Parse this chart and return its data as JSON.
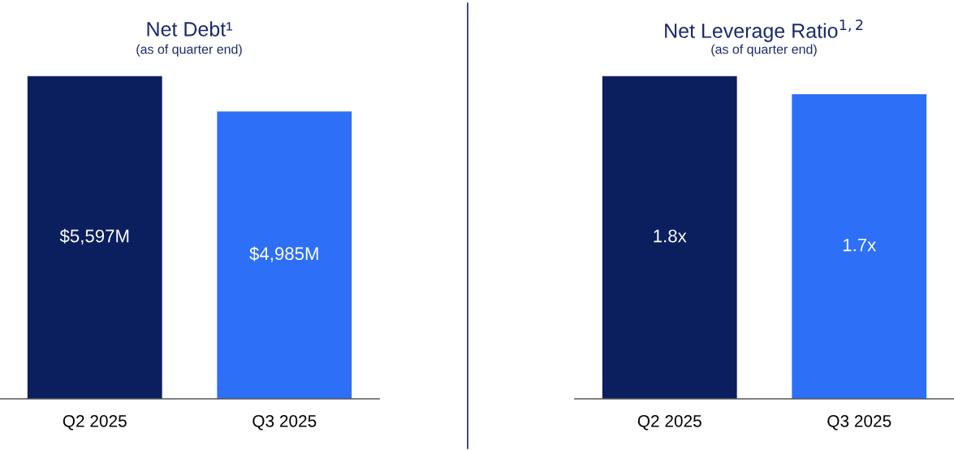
{
  "chart_data": [
    {
      "type": "bar",
      "title": "Net Debt¹",
      "subtitle": "(as of quarter end)",
      "categories": [
        "Q2 2025",
        "Q3 2025"
      ],
      "values": [
        5597,
        4985
      ],
      "colors": [
        "#0b1f5e",
        "#2d6ff7"
      ],
      "value_labels": [
        "$5,597M",
        "$4,985M"
      ],
      "tick_labels": "x"
    },
    {
      "type": "bar",
      "title": "Net Leverage Ratio$^{1,2}$",
      "subtitle": "(as of quarter end)",
      "categories": [
        "Q2 2025",
        "Q3 2025"
      ],
      "values": [
        1.8,
        1.7
      ],
      "colors": [
        "#0b1f5e",
        "#2d6ff7"
      ],
      "value_labels": [
        "1.8x",
        "1.7x"
      ],
      "tick_labels": "x"
    }
  ]
}
